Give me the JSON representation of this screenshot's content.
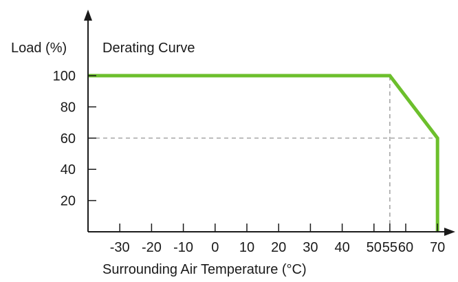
{
  "chart_data": {
    "type": "line",
    "title": "Derating Curve",
    "xlabel": "Surrounding Air Temperature (°C)",
    "ylabel": "Load (%)",
    "x_ticks": [
      "-30",
      "-20",
      "-10",
      "0",
      "10",
      "20",
      "30",
      "40",
      "50",
      "55",
      "60",
      "70"
    ],
    "y_ticks": [
      "20",
      "40",
      "60",
      "80",
      "100"
    ],
    "xlim": [
      -40,
      75
    ],
    "ylim": [
      0,
      110
    ],
    "series": [
      {
        "x": [
          -40,
          55,
          70,
          70
        ],
        "y": [
          100,
          100,
          60,
          0
        ],
        "color": "#6cbf2c"
      }
    ],
    "reference_lines": [
      {
        "x": [
          55,
          55
        ],
        "y": [
          0,
          100
        ]
      },
      {
        "x": [
          -40,
          70
        ],
        "y": [
          60,
          60
        ]
      }
    ],
    "colors": {
      "axis": "#1a1a1a",
      "reference": "#888888",
      "series": "#6cbf2c"
    }
  }
}
